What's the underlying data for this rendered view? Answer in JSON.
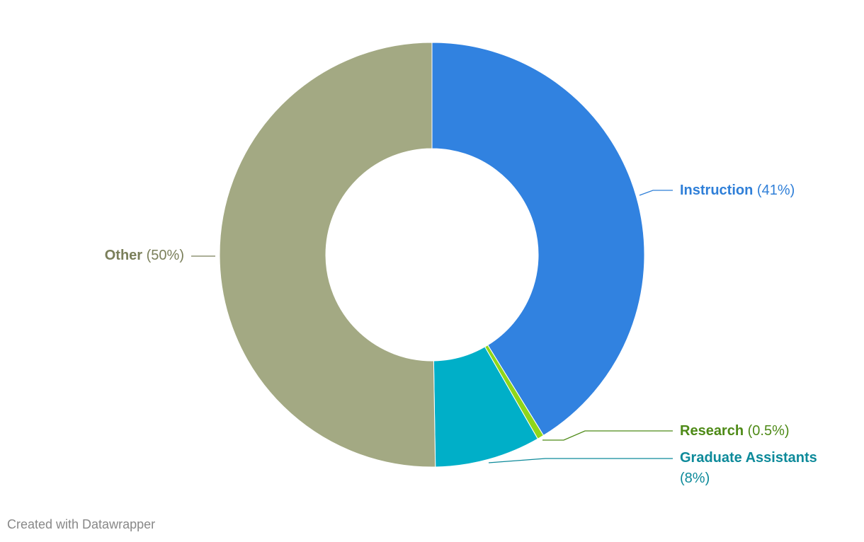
{
  "chart_data": {
    "type": "donut",
    "categories": [
      "Instruction",
      "Research",
      "Graduate Assistants",
      "Other"
    ],
    "values": [
      41,
      0.5,
      8,
      50
    ],
    "value_labels": [
      "(41%)",
      "(0.5%)",
      "(8%)",
      "(50%)"
    ],
    "colors": [
      "#3182e0",
      "#8fd61a",
      "#00afc8",
      "#a3a983"
    ],
    "label_colors": [
      "#2f7fd8",
      "#4e8a17",
      "#0d8a9a",
      "#7a7f5a"
    ]
  },
  "credit": "Created with Datawrapper"
}
